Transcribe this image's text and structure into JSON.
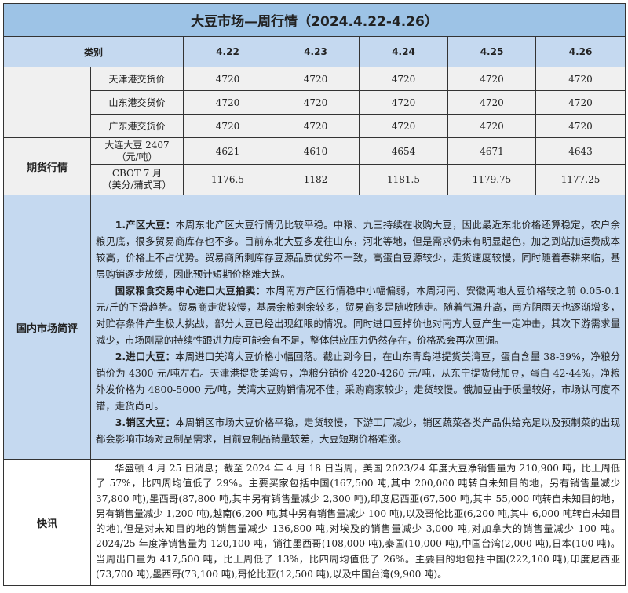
{
  "title": "大豆市场—周行情（2024.4.22-4.26）",
  "header": {
    "category": "类别",
    "dates": [
      "4.22",
      "4.23",
      "4.24",
      "4.25",
      "4.26"
    ]
  },
  "spot_rows": [
    {
      "label": "天津港交货价",
      "values": [
        "4720",
        "4720",
        "4720",
        "4720",
        "4720"
      ]
    },
    {
      "label": "山东港交货价",
      "values": [
        "4720",
        "4720",
        "4720",
        "4720",
        "4720"
      ]
    },
    {
      "label": "广东港交货价",
      "values": [
        "4720",
        "4720",
        "4720",
        "4720",
        "4720"
      ]
    }
  ],
  "futures": {
    "group_label": "期货行情",
    "rows": [
      {
        "label_line1": "大连大豆 2407",
        "label_line2": "（元/吨）",
        "values": [
          "4621",
          "4610",
          "4654",
          "4671",
          "4643"
        ]
      },
      {
        "label_line1": "CBOT 7 月",
        "label_line2": "（美分/蒲式耳）",
        "values": [
          "1176.5",
          "1182",
          "1181.5",
          "1179.75",
          "1177.25"
        ]
      }
    ]
  },
  "domestic": {
    "label": "国内市场简评",
    "paragraphs": [
      {
        "head": "1.产区大豆：",
        "body": "本周东北产区大豆行情仍比较平稳。中粮、九三持续在收购大豆，因此最近东北价格还算稳定，农户余粮见底，很多贸易商库存也不多。目前东北大豆多发往山东，河北等地，但是需求仍未有明显起色，加之到站加运费成本较高，价格上不占优势。贸易商所剩库存豆源品质优劣不一致，高蛋白豆源较少，走货速度较慢，同时随着春耕来临，基层购销逐步放缓，因此预计短期价格难大跌。"
      },
      {
        "head": "国家粮食交易中心进口大豆拍卖：",
        "body": "本周南方产区行情稳中小幅偏弱，本周河南、安徽两地大豆价格较之前 0.05-0.1 元/斤的下滑趋势。贸易商走货较慢，基层余粮剩余较多，贸易商多是随收随走。随着气温升高，南方阴雨天也逐渐增多，对贮存条件产生极大挑战，部分大豆已经出现红眼的情况。同时进口豆掉价也对南方大豆产生一定冲击，其次下游需求量减少，市场刚需的持续性跟进力度可能会有不足，整体供应压力仍然存在，价格恐会再次回调。"
      },
      {
        "head": "2.进口大豆：",
        "body": "本周进口美湾大豆价格小幅回落。截止到今日，在山东青岛港提货美湾豆，蛋白含量 38-39%，净粮分销价为 4300 元/吨左右。天津港提货美湾豆，净粮分销价 4220-4260 元/吨，从东宁提货俄加豆，蛋白 42-44%，净粮外发价格为 4800-5000 元/吨，美湾大豆购销情况不佳，采购商家较少，走货较慢。俄加豆由于质量较好，市场认可度不错，走货尚可。"
      },
      {
        "head": "3.销区大豆：",
        "body": "本周销区市场大豆价格平稳，走货较慢，下游工厂减少，销区蔬菜各类产品供给充足以及预制菜的出现都会影响市场对豆制品需求，目前豆制品销量较差，大豆短期价格难涨。"
      }
    ]
  },
  "news": {
    "label": "快讯",
    "text": "华盛顿 4 月 25 日消息；截至 2024 年 4 月 18 日当周，美国 2023/24 年度大豆净销售量为 210,900 吨，比上周低了 57%，比四周均值低了 29%。主要买家包括中国(167,500 吨,其中 200,000 吨转自未知目的地，另有销售量减少 37,800 吨),墨西哥(87,800 吨,其中另有销售量减少 2,300 吨),印度尼西亚(67,500 吨,其中 55,000 吨转自未知目的地，另有销售量减少 1,200 吨),越南(6,200 吨,其中另有销售量减少 100 吨),以及哥伦比亚(6,200 吨,其中 6,000 吨转自未知目的地),但是对未知目的地的销售量减少 136,800 吨,对埃及的销售量减少 3,000 吨,对加拿大的销售量减少 100 吨。2024/25 年度净销售量为 120,100 吨，销往墨西哥(108,000 吨),泰国(10,000 吨),中国台湾(2,000 吨),日本(100 吨)。当周出口量为 417,500 吨，比上周低了 13%，比四周均值低了 26%。主要目的地包括中国(222,100 吨),印度尼西亚(73,700 吨),墨西哥(73,100 吨),哥伦比亚(12,500 吨),以及中国台湾(9,900 吨)。"
  }
}
